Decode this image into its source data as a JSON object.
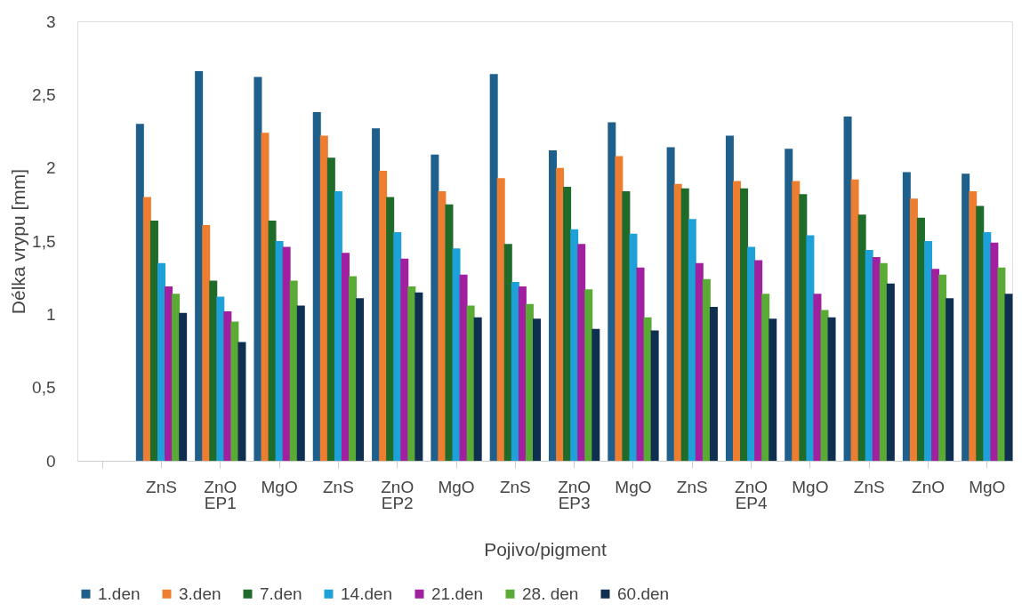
{
  "chart_data": {
    "type": "bar",
    "xlabel": "Pojivo/pigment",
    "ylabel": "Délka vrypu [mm]",
    "categories": [
      null,
      "ZnS",
      "ZnO",
      "MgO",
      "ZnS",
      "ZnO",
      "MgO",
      "ZnS",
      "ZnO",
      "MgO",
      "ZnS",
      "ZnO",
      "MgO",
      "ZnS",
      "ZnO",
      "MgO"
    ],
    "annotations": [
      "EP1",
      "EP2",
      "EP3",
      "EP4"
    ],
    "ylim": [
      0,
      3
    ],
    "yticks": [
      0,
      {
        "value": 0.5,
        "label": "0,5"
      },
      1,
      {
        "value": 1.5,
        "label": "1,5"
      },
      2,
      {
        "value": 2.5,
        "label": "2,5"
      },
      3
    ],
    "grid": false,
    "legend": "bottom",
    "series": [
      {
        "name": "1.den",
        "color": "#1f5f8b",
        "values": [
          null,
          2.3,
          2.66,
          2.62,
          2.38,
          2.27,
          2.09,
          2.64,
          2.12,
          2.31,
          2.14,
          2.22,
          2.13,
          2.35,
          1.97,
          1.96
        ]
      },
      {
        "name": "3.den",
        "color": "#ed7d31",
        "values": [
          null,
          1.8,
          1.61,
          2.24,
          2.22,
          1.98,
          1.84,
          1.93,
          2.0,
          2.08,
          1.89,
          1.91,
          1.91,
          1.92,
          1.79,
          1.84
        ]
      },
      {
        "name": "7.den",
        "color": "#1e6b2a",
        "values": [
          null,
          1.64,
          1.23,
          1.64,
          2.07,
          1.8,
          1.75,
          1.48,
          1.87,
          1.84,
          1.86,
          1.86,
          1.82,
          1.68,
          1.66,
          1.74
        ]
      },
      {
        "name": "14.den",
        "color": "#1ea0d8",
        "values": [
          null,
          1.35,
          1.12,
          1.5,
          1.84,
          1.56,
          1.45,
          1.22,
          1.58,
          1.55,
          1.65,
          1.46,
          1.54,
          1.44,
          1.5,
          1.56
        ]
      },
      {
        "name": "21.den",
        "color": "#a020a0",
        "values": [
          null,
          1.19,
          1.02,
          1.46,
          1.42,
          1.38,
          1.27,
          1.19,
          1.48,
          1.32,
          1.35,
          1.37,
          1.14,
          1.39,
          1.31,
          1.49
        ]
      },
      {
        "name": "28. den",
        "color": "#5aab35",
        "values": [
          null,
          1.14,
          0.95,
          1.23,
          1.26,
          1.19,
          1.06,
          1.07,
          1.17,
          0.98,
          1.24,
          1.14,
          1.03,
          1.35,
          1.27,
          1.32
        ]
      },
      {
        "name": "60.den",
        "color": "#0e2f4f",
        "values": [
          null,
          1.01,
          0.81,
          1.06,
          1.11,
          1.15,
          0.98,
          0.97,
          0.9,
          0.89,
          1.05,
          0.97,
          0.98,
          1.21,
          1.11,
          1.14
        ]
      }
    ]
  }
}
